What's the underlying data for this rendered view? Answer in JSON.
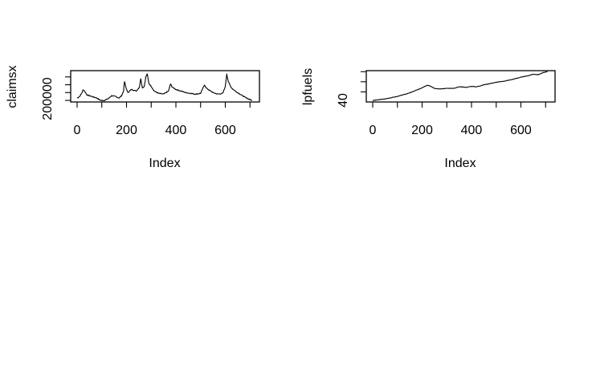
{
  "chart_data": [
    {
      "type": "line",
      "xlabel": "Index",
      "ylabel": "claimsx",
      "x_ticks": [
        "0",
        "200",
        "400",
        "600"
      ],
      "y_ticks": [
        "200000"
      ],
      "xlim": [
        0,
        720
      ],
      "ylim": [
        280000,
        680000
      ],
      "anchors": [
        [
          0,
          330000
        ],
        [
          10,
          350000
        ],
        [
          20,
          400000
        ],
        [
          25,
          440000
        ],
        [
          32,
          410000
        ],
        [
          40,
          370000
        ],
        [
          60,
          350000
        ],
        [
          80,
          330000
        ],
        [
          95,
          300000
        ],
        [
          110,
          300000
        ],
        [
          125,
          320000
        ],
        [
          140,
          360000
        ],
        [
          155,
          350000
        ],
        [
          170,
          330000
        ],
        [
          180,
          360000
        ],
        [
          188,
          420000
        ],
        [
          192,
          540000
        ],
        [
          197,
          470000
        ],
        [
          205,
          400000
        ],
        [
          220,
          440000
        ],
        [
          240,
          420000
        ],
        [
          252,
          470000
        ],
        [
          258,
          580000
        ],
        [
          264,
          460000
        ],
        [
          272,
          480000
        ],
        [
          278,
          600000
        ],
        [
          284,
          640000
        ],
        [
          290,
          520000
        ],
        [
          300,
          480000
        ],
        [
          312,
          420000
        ],
        [
          330,
          390000
        ],
        [
          350,
          380000
        ],
        [
          370,
          420000
        ],
        [
          378,
          510000
        ],
        [
          385,
          470000
        ],
        [
          400,
          440000
        ],
        [
          420,
          420000
        ],
        [
          440,
          400000
        ],
        [
          460,
          390000
        ],
        [
          480,
          380000
        ],
        [
          500,
          390000
        ],
        [
          510,
          460000
        ],
        [
          516,
          500000
        ],
        [
          522,
          460000
        ],
        [
          535,
          430000
        ],
        [
          550,
          400000
        ],
        [
          570,
          380000
        ],
        [
          590,
          390000
        ],
        [
          600,
          480000
        ],
        [
          606,
          640000
        ],
        [
          612,
          540000
        ],
        [
          625,
          460000
        ],
        [
          640,
          420000
        ],
        [
          660,
          380000
        ],
        [
          680,
          340000
        ],
        [
          700,
          310000
        ],
        [
          708,
          300000
        ]
      ]
    },
    {
      "type": "line",
      "xlabel": "Index",
      "ylabel": "lpfuels",
      "x_ticks": [
        "0",
        "200",
        "400",
        "600"
      ],
      "y_ticks": [
        "40"
      ],
      "xlim": [
        0,
        720
      ],
      "ylim": [
        20,
        82
      ],
      "anchors": [
        [
          0,
          23
        ],
        [
          50,
          26
        ],
        [
          100,
          31
        ],
        [
          150,
          38
        ],
        [
          180,
          44
        ],
        [
          200,
          48
        ],
        [
          220,
          53
        ],
        [
          230,
          52
        ],
        [
          250,
          47
        ],
        [
          270,
          46
        ],
        [
          300,
          47
        ],
        [
          330,
          47
        ],
        [
          350,
          50
        ],
        [
          380,
          49
        ],
        [
          400,
          51
        ],
        [
          420,
          50
        ],
        [
          450,
          54
        ],
        [
          480,
          57
        ],
        [
          500,
          59
        ],
        [
          530,
          61
        ],
        [
          560,
          64
        ],
        [
          600,
          69
        ],
        [
          630,
          72
        ],
        [
          650,
          75
        ],
        [
          670,
          74
        ],
        [
          690,
          78
        ],
        [
          708,
          80
        ]
      ]
    }
  ]
}
